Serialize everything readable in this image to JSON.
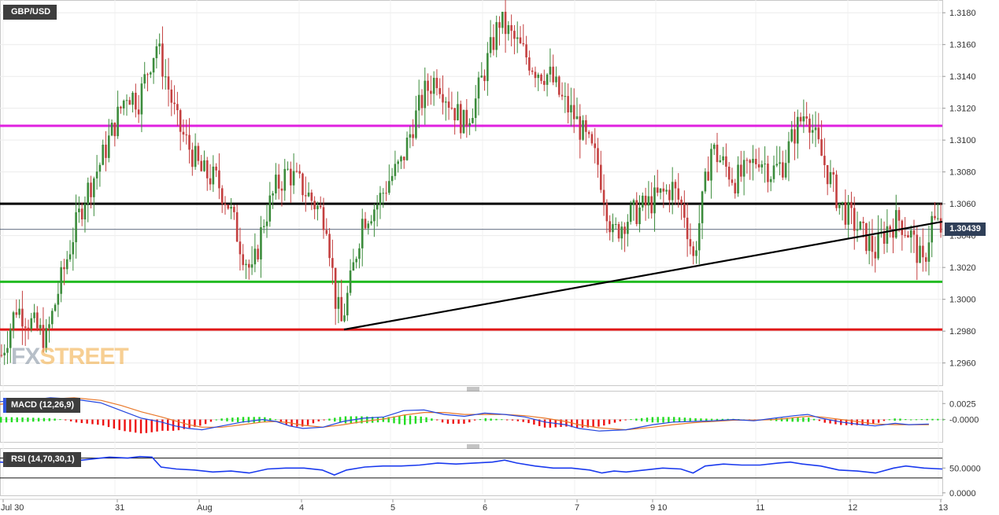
{
  "instrument": "GBP/USD",
  "watermark": {
    "part1": "FX",
    "part2": "STREET",
    "color1": "#7d8c9c",
    "color2": "#f2a93b"
  },
  "last_price_label": "1.30439",
  "macd": {
    "label": "MACD (12,26,9)",
    "accent": "#3355dd",
    "axis_labels": [
      "0.0025",
      "-0.0000"
    ],
    "range": [
      -0.0035,
      0.0045
    ]
  },
  "rsi": {
    "label": "RSI (14,70,30,1)",
    "accent": "#444444",
    "axis_labels": [
      "50.0000",
      "0.0000"
    ],
    "levels": [
      70,
      30
    ],
    "range": [
      -5,
      90
    ]
  },
  "chart_data": {
    "type": "candlestick",
    "title": "GBP/USD",
    "ylim": [
      1.2946,
      1.3188
    ],
    "y_ticks": [
      "1.3180",
      "1.3160",
      "1.3140",
      "1.3120",
      "1.3100",
      "1.3080",
      "1.3060",
      "1.3040",
      "1.3020",
      "1.3000",
      "1.2980",
      "1.2960"
    ],
    "x_tick_labels": [
      "Jul 30",
      "31",
      "Aug",
      "4",
      "5",
      "6",
      "7",
      "9 10",
      "11",
      "12",
      "13"
    ],
    "grid": true,
    "last_price": 1.30439,
    "horizontal_lines": [
      {
        "value": 1.3109,
        "color": "#e020e0"
      },
      {
        "value": 1.306,
        "color": "#000000"
      },
      {
        "value": 1.3011,
        "color": "#22bb22"
      },
      {
        "value": 1.2981,
        "color": "#e01818"
      }
    ],
    "trendline": {
      "from": {
        "date": "Aug 4",
        "value": 1.2981
      },
      "to": {
        "date": "Aug 12",
        "value": 1.3045
      },
      "color": "#000000"
    },
    "up_color": "#3c8c3c",
    "down_color": "#c44040",
    "close_path": [
      [
        0,
        1.2965
      ],
      [
        5,
        1.2995
      ],
      [
        10,
        1.2985
      ],
      [
        15,
        1.2975
      ],
      [
        19,
        1.3005
      ],
      [
        24,
        1.304
      ],
      [
        28,
        1.3065
      ],
      [
        33,
        1.3085
      ],
      [
        38,
        1.311
      ],
      [
        42,
        1.313
      ],
      [
        46,
        1.3125
      ],
      [
        50,
        1.315
      ],
      [
        52,
        1.316
      ],
      [
        55,
        1.314
      ],
      [
        59,
        1.311
      ],
      [
        63,
        1.3095
      ],
      [
        67,
        1.308
      ],
      [
        72,
        1.3075
      ],
      [
        76,
        1.306
      ],
      [
        80,
        1.3035
      ],
      [
        84,
        1.3015
      ],
      [
        88,
        1.305
      ],
      [
        92,
        1.307
      ],
      [
        96,
        1.308
      ],
      [
        101,
        1.307
      ],
      [
        105,
        1.306
      ],
      [
        109,
        1.305
      ],
      [
        112,
        1.3
      ],
      [
        114,
        1.2985
      ],
      [
        117,
        1.301
      ],
      [
        121,
        1.305
      ],
      [
        126,
        1.306
      ],
      [
        130,
        1.3075
      ],
      [
        134,
        1.3085
      ],
      [
        138,
        1.311
      ],
      [
        142,
        1.313
      ],
      [
        146,
        1.314
      ],
      [
        150,
        1.3125
      ],
      [
        155,
        1.311
      ],
      [
        159,
        1.3125
      ],
      [
        163,
        1.315
      ],
      [
        167,
        1.3175
      ],
      [
        171,
        1.3165
      ],
      [
        175,
        1.3155
      ],
      [
        179,
        1.3145
      ],
      [
        184,
        1.314
      ],
      [
        188,
        1.3125
      ],
      [
        192,
        1.3115
      ],
      [
        196,
        1.31
      ],
      [
        200,
        1.3085
      ],
      [
        205,
        1.304
      ],
      [
        209,
        1.305
      ],
      [
        213,
        1.3055
      ],
      [
        217,
        1.306
      ],
      [
        221,
        1.3065
      ],
      [
        225,
        1.307
      ],
      [
        229,
        1.3055
      ],
      [
        232,
        1.3025
      ],
      [
        235,
        1.306
      ],
      [
        238,
        1.3095
      ],
      [
        242,
        1.3085
      ],
      [
        246,
        1.3075
      ],
      [
        250,
        1.308
      ],
      [
        254,
        1.309
      ],
      [
        258,
        1.308
      ],
      [
        262,
        1.3085
      ],
      [
        266,
        1.3105
      ],
      [
        270,
        1.312
      ],
      [
        273,
        1.31
      ],
      [
        277,
        1.308
      ],
      [
        281,
        1.306
      ],
      [
        285,
        1.305
      ],
      [
        289,
        1.304
      ],
      [
        293,
        1.303
      ],
      [
        297,
        1.3045
      ],
      [
        301,
        1.305
      ],
      [
        305,
        1.304
      ],
      [
        309,
        1.302
      ],
      [
        312,
        1.305
      ],
      [
        315,
        1.3044
      ]
    ],
    "macd_line_path": [
      [
        0,
        0.0028
      ],
      [
        8,
        0.003
      ],
      [
        15,
        0.0034
      ],
      [
        22,
        0.0032
      ],
      [
        30,
        0.0026
      ],
      [
        36,
        0.0014
      ],
      [
        42,
        0.0002
      ],
      [
        48,
        -0.0004
      ],
      [
        52,
        -0.001
      ],
      [
        56,
        -0.0014
      ],
      [
        60,
        -0.0016
      ],
      [
        66,
        -0.001
      ],
      [
        72,
        -0.0004
      ],
      [
        78,
        0.0
      ],
      [
        82,
        -0.0003
      ],
      [
        86,
        -0.001
      ],
      [
        90,
        -0.0014
      ],
      [
        96,
        -0.0012
      ],
      [
        102,
        -0.0003
      ],
      [
        108,
        0.0002
      ],
      [
        114,
        0.0004
      ],
      [
        120,
        0.0014
      ],
      [
        126,
        0.0015
      ],
      [
        132,
        0.0008
      ],
      [
        138,
        0.0005
      ],
      [
        144,
        0.001
      ],
      [
        150,
        0.0008
      ],
      [
        156,
        0.0004
      ],
      [
        162,
        -0.0004
      ],
      [
        168,
        -0.0008
      ],
      [
        172,
        -0.0014
      ],
      [
        178,
        -0.0018
      ],
      [
        186,
        -0.0016
      ],
      [
        194,
        -0.0008
      ],
      [
        200,
        -0.0004
      ],
      [
        206,
        -0.0003
      ],
      [
        212,
        -0.0002
      ],
      [
        218,
        0.0
      ],
      [
        224,
        -0.0002
      ],
      [
        230,
        0.0002
      ],
      [
        236,
        0.0006
      ],
      [
        240,
        0.0008
      ],
      [
        244,
        0.0002
      ],
      [
        250,
        -0.0004
      ],
      [
        256,
        -0.0008
      ],
      [
        260,
        -0.001
      ],
      [
        266,
        -0.0006
      ],
      [
        270,
        -0.0008
      ],
      [
        276,
        -0.0007
      ]
    ],
    "macd_signal_path": [
      [
        0,
        0.0024
      ],
      [
        8,
        0.0027
      ],
      [
        15,
        0.0032
      ],
      [
        22,
        0.0034
      ],
      [
        30,
        0.003
      ],
      [
        36,
        0.0022
      ],
      [
        42,
        0.0012
      ],
      [
        48,
        0.0004
      ],
      [
        52,
        -0.0002
      ],
      [
        56,
        -0.0008
      ],
      [
        60,
        -0.0012
      ],
      [
        66,
        -0.0012
      ],
      [
        72,
        -0.0008
      ],
      [
        78,
        -0.0004
      ],
      [
        82,
        -0.0003
      ],
      [
        86,
        -0.0005
      ],
      [
        90,
        -0.0009
      ],
      [
        96,
        -0.0012
      ],
      [
        102,
        -0.0008
      ],
      [
        108,
        -0.0003
      ],
      [
        114,
        0.0001
      ],
      [
        120,
        0.0007
      ],
      [
        126,
        0.0011
      ],
      [
        132,
        0.0011
      ],
      [
        138,
        0.0008
      ],
      [
        144,
        0.0008
      ],
      [
        150,
        0.0008
      ],
      [
        156,
        0.0006
      ],
      [
        162,
        0.0002
      ],
      [
        168,
        -0.0003
      ],
      [
        172,
        -0.0008
      ],
      [
        178,
        -0.0013
      ],
      [
        186,
        -0.0016
      ],
      [
        194,
        -0.0012
      ],
      [
        200,
        -0.0008
      ],
      [
        206,
        -0.0005
      ],
      [
        212,
        -0.0003
      ],
      [
        218,
        -0.0001
      ],
      [
        224,
        -0.0001
      ],
      [
        230,
        0.0
      ],
      [
        236,
        0.0003
      ],
      [
        240,
        0.0005
      ],
      [
        244,
        0.0004
      ],
      [
        250,
        0.0
      ],
      [
        256,
        -0.0004
      ],
      [
        260,
        -0.0007
      ],
      [
        266,
        -0.0008
      ],
      [
        270,
        -0.0008
      ],
      [
        276,
        -0.0008
      ]
    ],
    "rsi_path": [
      [
        0,
        62
      ],
      [
        6,
        60
      ],
      [
        12,
        54
      ],
      [
        18,
        62
      ],
      [
        24,
        64
      ],
      [
        30,
        68
      ],
      [
        36,
        72
      ],
      [
        42,
        70
      ],
      [
        46,
        73
      ],
      [
        50,
        72
      ],
      [
        53,
        52
      ],
      [
        58,
        48
      ],
      [
        64,
        46
      ],
      [
        70,
        42
      ],
      [
        76,
        44
      ],
      [
        82,
        40
      ],
      [
        88,
        48
      ],
      [
        94,
        50
      ],
      [
        100,
        50
      ],
      [
        106,
        46
      ],
      [
        110,
        36
      ],
      [
        114,
        46
      ],
      [
        120,
        52
      ],
      [
        126,
        54
      ],
      [
        132,
        54
      ],
      [
        138,
        56
      ],
      [
        144,
        60
      ],
      [
        150,
        58
      ],
      [
        156,
        60
      ],
      [
        162,
        62
      ],
      [
        166,
        66
      ],
      [
        170,
        60
      ],
      [
        176,
        54
      ],
      [
        182,
        50
      ],
      [
        188,
        50
      ],
      [
        194,
        46
      ],
      [
        198,
        40
      ],
      [
        202,
        44
      ],
      [
        206,
        42
      ],
      [
        212,
        46
      ],
      [
        218,
        50
      ],
      [
        224,
        48
      ],
      [
        228,
        40
      ],
      [
        232,
        54
      ],
      [
        238,
        58
      ],
      [
        244,
        56
      ],
      [
        250,
        56
      ],
      [
        256,
        60
      ],
      [
        260,
        62
      ],
      [
        264,
        58
      ],
      [
        270,
        54
      ],
      [
        276,
        46
      ],
      [
        282,
        44
      ],
      [
        288,
        40
      ],
      [
        294,
        50
      ],
      [
        298,
        54
      ],
      [
        304,
        50
      ],
      [
        310,
        48
      ]
    ]
  }
}
